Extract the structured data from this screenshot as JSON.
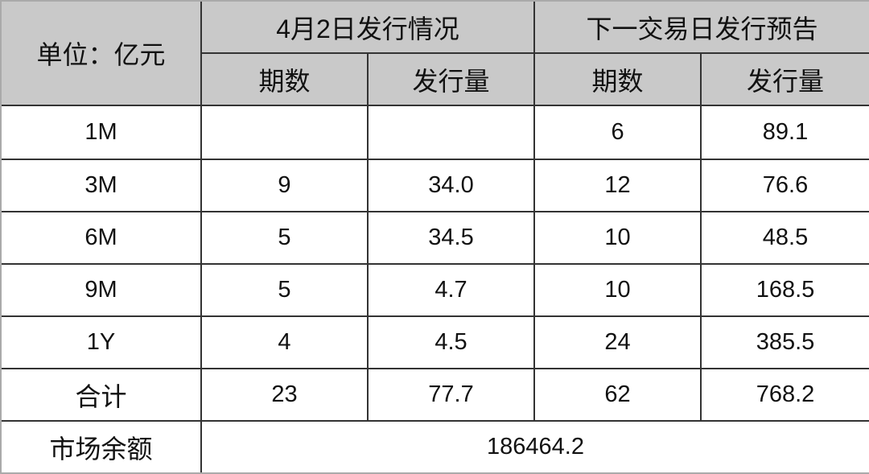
{
  "header": {
    "unit_label": "单位：亿元",
    "group_today": "4月2日发行情况",
    "group_next": "下一交易日发行预告",
    "col_count": "期数",
    "col_amount": "发行量"
  },
  "rows": [
    {
      "term": "1M",
      "today_count": "",
      "today_amount": "",
      "next_count": "6",
      "next_amount": "89.1"
    },
    {
      "term": "3M",
      "today_count": "9",
      "today_amount": "34.0",
      "next_count": "12",
      "next_amount": "76.6"
    },
    {
      "term": "6M",
      "today_count": "5",
      "today_amount": "34.5",
      "next_count": "10",
      "next_amount": "48.5"
    },
    {
      "term": "9M",
      "today_count": "5",
      "today_amount": "4.7",
      "next_count": "10",
      "next_amount": "168.5"
    },
    {
      "term": "1Y",
      "today_count": "4",
      "today_amount": "4.5",
      "next_count": "24",
      "next_amount": "385.5"
    },
    {
      "term": "合计",
      "today_count": "23",
      "today_amount": "77.7",
      "next_count": "62",
      "next_amount": "768.2"
    }
  ],
  "market_balance": {
    "label": "市场余额",
    "value": "186464.2"
  },
  "colors": {
    "header_bg": "#c9c9c9",
    "border": "#333333"
  }
}
